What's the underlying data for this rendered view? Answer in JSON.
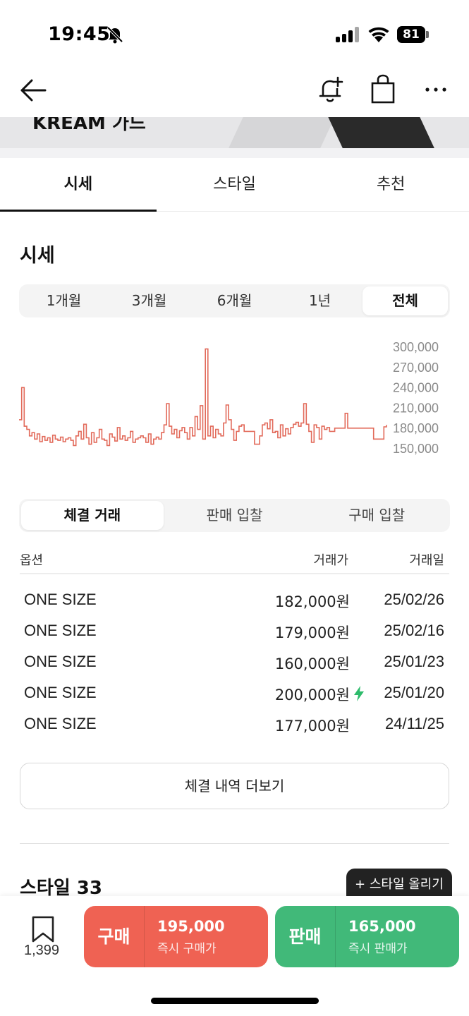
{
  "status": {
    "time": "19:45",
    "battery": "81"
  },
  "nav": {
    "back": "back",
    "icons": [
      "bell-plus-icon",
      "bag-icon",
      "more-icon"
    ]
  },
  "banner": {
    "text": "KREAM 가드"
  },
  "tabs": [
    {
      "label": "시세",
      "active": true
    },
    {
      "label": "스타일",
      "active": false
    },
    {
      "label": "추천",
      "active": false
    }
  ],
  "price_section": {
    "title": "시세",
    "periods": [
      {
        "label": "1개월",
        "active": false
      },
      {
        "label": "3개월",
        "active": false
      },
      {
        "label": "6개월",
        "active": false
      },
      {
        "label": "1년",
        "active": false
      },
      {
        "label": "전체",
        "active": true
      }
    ]
  },
  "chart_data": {
    "type": "line",
    "y_tick_labels": [
      "300,000",
      "270,000",
      "240,000",
      "210,000",
      "180,000",
      "150,000"
    ],
    "ylim": [
      145000,
      305000
    ],
    "color": "#e26a5a",
    "series": [
      {
        "values": [
          190000,
          240000,
          180000,
          175000,
          165000,
          170000,
          160000,
          168000,
          156000,
          164000,
          158000,
          162000,
          155000,
          166000,
          160000,
          158000,
          163000,
          156000,
          160000,
          162000,
          158000,
          150000,
          165000,
          172000,
          160000,
          183000,
          162000,
          152000,
          170000,
          155000,
          162000,
          175000,
          160000,
          158000,
          150000,
          168000,
          163000,
          157000,
          178000,
          160000,
          165000,
          158000,
          162000,
          172000,
          155000,
          160000,
          162000,
          165000,
          162000,
          155000,
          168000,
          152000,
          160000,
          163000,
          160000,
          170000,
          182000,
          215000,
          180000,
          168000,
          175000,
          162000,
          173000,
          178000,
          170000,
          160000,
          178000,
          165000,
          195000,
          175000,
          212000,
          160000,
          300000,
          165000,
          180000,
          162000,
          175000,
          168000,
          165000,
          185000,
          213000,
          190000,
          175000,
          158000,
          172000,
          180000,
          182000,
          172000,
          172000,
          172000,
          172000,
          152000,
          152000,
          165000,
          182000,
          185000,
          176000,
          190000,
          170000,
          172000,
          162000,
          182000,
          165000,
          176000,
          168000,
          178000,
          183000,
          186000,
          180000,
          185000,
          215000,
          183000,
          172000,
          155000,
          182000,
          178000,
          160000,
          180000,
          175000,
          178000,
          172000,
          172000,
          177000,
          177000,
          177000,
          177000,
          200000,
          177000,
          177000,
          177000,
          177000,
          177000,
          177000,
          177000,
          177000,
          177000,
          177000,
          160000,
          160000,
          160000,
          160000,
          179000,
          182000
        ]
      }
    ]
  },
  "trade": {
    "tabs": [
      {
        "label": "체결 거래",
        "active": true
      },
      {
        "label": "판매 입찰",
        "active": false
      },
      {
        "label": "구매 입찰",
        "active": false
      }
    ],
    "headers": {
      "option": "옵션",
      "price": "거래가",
      "date": "거래일"
    },
    "rows": [
      {
        "option": "ONE SIZE",
        "price": "182,000원",
        "date": "25/02/26",
        "quick": false
      },
      {
        "option": "ONE SIZE",
        "price": "179,000원",
        "date": "25/02/16",
        "quick": false
      },
      {
        "option": "ONE SIZE",
        "price": "160,000원",
        "date": "25/01/23",
        "quick": false
      },
      {
        "option": "ONE SIZE",
        "price": "200,000원",
        "date": "25/01/20",
        "quick": true
      },
      {
        "option": "ONE SIZE",
        "price": "177,000원",
        "date": "24/11/25",
        "quick": false
      }
    ],
    "more_label": "체결 내역 더보기"
  },
  "style_section": {
    "title": "스타일 33",
    "upload_label": "+ 스타일 올리기"
  },
  "bottom_bar": {
    "bookmark_count": "1,399",
    "buy": {
      "label": "구매",
      "price": "195,000",
      "sub": "즉시 구매가",
      "color": "#ef6253"
    },
    "sell": {
      "label": "판매",
      "price": "165,000",
      "sub": "즉시 판매가",
      "color": "#41b979"
    }
  }
}
